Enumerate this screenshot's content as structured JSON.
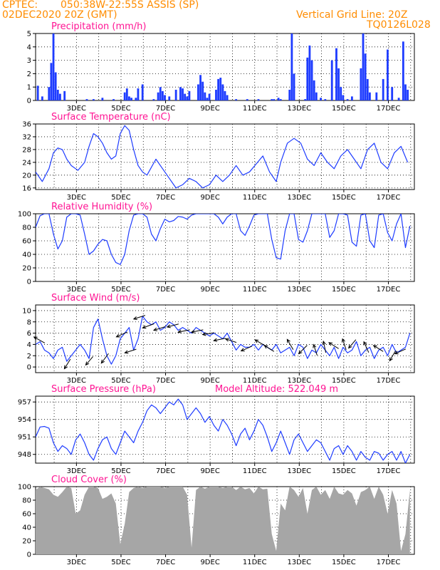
{
  "header": {
    "source": "CPTEC:",
    "location": "050:38W-22:55S   ASSIS (SP)",
    "run": "02DEC2020 20Z (GMT)",
    "grid_note": "Vertical Grid Line: 20Z",
    "model": "TQ0126L028"
  },
  "colors": {
    "header": "#ff8c00",
    "title": "#ff1493",
    "series": "#1e3cff",
    "cloud": "#a6a6a6"
  },
  "x_labels": [
    "3DEC",
    "5DEC",
    "7DEC",
    "9DEC",
    "11DEC",
    "13DEC",
    "15DEC",
    "17DEC"
  ],
  "model_altitude": "Model Altitude: 522.049 m",
  "chart_data": [
    {
      "id": "precip",
      "type": "bar",
      "title": "Precipitation (mm/h)",
      "ylim": [
        0,
        5
      ],
      "yticks": [
        0,
        1,
        2,
        3,
        4,
        5
      ],
      "x": [
        0.1,
        0.3,
        0.6,
        0.7,
        0.8,
        0.9,
        1.0,
        1.1,
        1.3,
        2.3,
        2.6,
        3.0,
        3.5,
        4.0,
        4.1,
        4.2,
        4.3,
        4.5,
        4.6,
        4.8,
        5.3,
        5.5,
        5.6,
        5.7,
        5.8,
        6.0,
        6.3,
        6.5,
        6.6,
        6.7,
        6.8,
        6.9,
        7.3,
        7.4,
        7.5,
        7.6,
        7.7,
        7.8,
        8.1,
        8.2,
        8.3,
        8.4,
        8.5,
        8.6,
        9.0,
        9.5,
        10.0,
        10.6,
        10.7,
        10.9,
        11.0,
        11.4,
        11.5,
        11.6,
        12.1,
        12.2,
        12.3,
        12.4,
        12.5,
        12.6,
        12.8,
        13.0,
        13.3,
        13.5,
        13.6,
        13.7,
        13.8,
        14.0,
        14.2,
        14.6,
        14.7,
        14.8,
        14.9,
        15.0,
        15.3,
        15.6,
        15.8,
        16.0,
        16.3,
        16.5,
        16.6,
        16.7
      ],
      "values": [
        1.1,
        0.3,
        1.0,
        2.8,
        5.0,
        2.1,
        0.8,
        0.5,
        0.7,
        0.1,
        0.1,
        0.2,
        0.1,
        0.6,
        0.9,
        0.3,
        0.2,
        0.2,
        0.9,
        1.2,
        0.1,
        0.6,
        1.0,
        0.7,
        0.4,
        0.3,
        0.8,
        1.0,
        0.9,
        0.5,
        0.3,
        0.7,
        1.2,
        1.9,
        1.4,
        0.6,
        0.2,
        0.5,
        0.8,
        1.6,
        1.7,
        1.2,
        0.7,
        0.4,
        0.1,
        0.1,
        0.1,
        0.1,
        0.1,
        0.2,
        0.1,
        0.8,
        5.0,
        2.0,
        0.1,
        3.2,
        4.1,
        3.0,
        1.5,
        0.6,
        0.2,
        0.1,
        3.0,
        3.9,
        2.4,
        1.0,
        0.4,
        0.1,
        0.3,
        2.4,
        5.0,
        3.5,
        1.6,
        0.6,
        0.6,
        1.6,
        3.8,
        1.0,
        0.2,
        4.4,
        1.2,
        0.8
      ]
    },
    {
      "id": "temp",
      "type": "line",
      "title": "Surface Temperature (nC)",
      "ylim": [
        15.5,
        36
      ],
      "yticks": [
        16,
        20,
        24,
        28,
        32,
        36
      ],
      "x": [
        0.0,
        0.3,
        0.6,
        0.8,
        1.0,
        1.2,
        1.4,
        1.6,
        1.9,
        2.2,
        2.4,
        2.6,
        2.8,
        3.0,
        3.2,
        3.4,
        3.6,
        3.8,
        4.0,
        4.2,
        4.4,
        4.6,
        4.8,
        5.0,
        5.2,
        5.4,
        5.7,
        6.0,
        6.3,
        6.6,
        6.9,
        7.2,
        7.5,
        7.8,
        8.1,
        8.4,
        8.7,
        9.0,
        9.3,
        9.6,
        9.9,
        10.2,
        10.5,
        10.8,
        11.0,
        11.3,
        11.6,
        11.9,
        12.2,
        12.5,
        12.8,
        13.1,
        13.4,
        13.7,
        14.0,
        14.3,
        14.6,
        14.9,
        15.2,
        15.5,
        15.8,
        16.1,
        16.4,
        16.7
      ],
      "values": [
        21,
        18,
        22,
        27,
        28.5,
        28,
        25,
        23,
        21.5,
        24,
        29,
        33,
        32,
        30,
        27,
        25,
        26,
        33,
        35.5,
        34,
        28,
        23,
        21,
        20,
        22.5,
        25,
        22,
        19,
        16,
        17,
        19,
        18,
        16,
        17,
        20,
        18,
        20,
        23,
        20,
        21,
        23.5,
        26,
        21,
        18,
        24,
        30,
        31.5,
        30,
        25,
        23,
        27,
        24,
        22,
        26,
        28,
        25,
        22,
        28,
        30,
        24,
        22,
        27,
        29,
        24
      ]
    },
    {
      "id": "rh",
      "type": "line",
      "title": "Relative Humidity (%)",
      "ylim": [
        0,
        100
      ],
      "yticks": [
        0,
        20,
        40,
        60,
        80,
        100
      ],
      "x": [
        0.0,
        0.2,
        0.4,
        0.6,
        0.8,
        1.0,
        1.2,
        1.4,
        1.6,
        1.8,
        2.0,
        2.2,
        2.4,
        2.6,
        2.8,
        3.0,
        3.2,
        3.4,
        3.6,
        3.8,
        4.0,
        4.2,
        4.4,
        4.6,
        4.8,
        5.0,
        5.2,
        5.4,
        5.6,
        5.8,
        6.0,
        6.2,
        6.4,
        6.6,
        6.8,
        7.0,
        7.2,
        7.4,
        7.6,
        7.8,
        8.0,
        8.2,
        8.4,
        8.6,
        8.8,
        9.0,
        9.2,
        9.4,
        9.6,
        9.8,
        10.0,
        10.2,
        10.4,
        10.6,
        10.8,
        11.0,
        11.2,
        11.4,
        11.6,
        11.8,
        12.0,
        12.2,
        12.4,
        12.6,
        12.8,
        13.0,
        13.2,
        13.4,
        13.6,
        13.8,
        14.0,
        14.2,
        14.4,
        14.6,
        14.8,
        15.0,
        15.2,
        15.4,
        15.6,
        15.8,
        16.0,
        16.2,
        16.4,
        16.6,
        16.8
      ],
      "values": [
        80,
        97,
        100,
        100,
        70,
        48,
        60,
        95,
        100,
        100,
        98,
        70,
        40,
        45,
        55,
        62,
        60,
        40,
        28,
        25,
        40,
        75,
        98,
        100,
        100,
        95,
        70,
        60,
        78,
        92,
        88,
        90,
        96,
        95,
        92,
        98,
        100,
        100,
        100,
        100,
        100,
        95,
        85,
        95,
        100,
        100,
        75,
        68,
        82,
        98,
        100,
        100,
        100,
        62,
        35,
        33,
        75,
        100,
        100,
        62,
        58,
        75,
        100,
        100,
        100,
        100,
        65,
        75,
        100,
        100,
        98,
        58,
        52,
        98,
        100,
        60,
        50,
        98,
        100,
        72,
        60,
        85,
        100,
        50,
        82
      ]
    },
    {
      "id": "wind",
      "type": "line",
      "title": "Surface Wind (m/s)",
      "ylim": [
        -1,
        11
      ],
      "yticks": [
        0,
        2,
        4,
        6,
        8,
        10
      ],
      "x": [
        0.0,
        0.2,
        0.4,
        0.6,
        0.8,
        1.0,
        1.2,
        1.4,
        1.6,
        1.8,
        2.0,
        2.2,
        2.4,
        2.6,
        2.8,
        3.0,
        3.2,
        3.4,
        3.6,
        3.8,
        4.0,
        4.2,
        4.4,
        4.6,
        4.8,
        5.0,
        5.2,
        5.4,
        5.6,
        5.8,
        6.0,
        6.2,
        6.4,
        6.6,
        6.8,
        7.0,
        7.2,
        7.4,
        7.6,
        7.8,
        8.0,
        8.2,
        8.4,
        8.6,
        8.8,
        9.0,
        9.2,
        9.4,
        9.6,
        9.8,
        10.0,
        10.2,
        10.4,
        10.6,
        10.8,
        11.0,
        11.2,
        11.4,
        11.6,
        11.8,
        12.0,
        12.2,
        12.4,
        12.6,
        12.8,
        13.0,
        13.2,
        13.4,
        13.6,
        13.8,
        14.0,
        14.2,
        14.4,
        14.6,
        14.8,
        15.0,
        15.2,
        15.4,
        15.6,
        15.8,
        16.0,
        16.2,
        16.4,
        16.6,
        16.8
      ],
      "values": [
        4,
        4.5,
        3,
        2.5,
        1.5,
        3,
        3.5,
        1,
        2,
        3,
        4,
        3,
        1.5,
        7,
        8.5,
        5,
        2,
        0.5,
        2,
        5,
        6,
        7,
        3,
        5,
        9,
        8,
        7.5,
        8,
        6.5,
        7,
        8,
        7.5,
        6.5,
        7,
        6.5,
        6,
        7,
        6.5,
        6,
        5.5,
        6,
        5.5,
        5,
        6,
        4.5,
        3,
        4,
        3.5,
        3.5,
        4,
        3,
        4,
        3.5,
        3,
        4,
        2.5,
        3,
        3.5,
        2,
        4,
        3.5,
        1.5,
        3,
        2.5,
        4,
        3,
        2,
        3.5,
        1.5,
        3.5,
        2.5,
        3,
        4.5,
        2,
        3,
        3.5,
        1.5,
        3,
        3.5,
        2,
        4,
        2.5,
        3,
        3.5,
        6
      ],
      "arrows": [
        {
          "x": 0.3,
          "dx": 0.9,
          "dy": -0.5
        },
        {
          "x": 1.5,
          "dx": 0.5,
          "dy": 0.8
        },
        {
          "x": 2.5,
          "dx": 0.6,
          "dy": 0.7
        },
        {
          "x": 3.2,
          "dx": 0.6,
          "dy": 0.8
        },
        {
          "x": 4.0,
          "dx": 0.9,
          "dy": 0.4
        },
        {
          "x": 4.4,
          "dx": 0.95,
          "dy": 0.3
        },
        {
          "x": 4.8,
          "dx": 0.95,
          "dy": 0.3
        },
        {
          "x": 5.2,
          "dx": 0.95,
          "dy": 0.35
        },
        {
          "x": 5.7,
          "dx": 0.95,
          "dy": 0.3
        },
        {
          "x": 6.3,
          "dx": 0.95,
          "dy": 0.25
        },
        {
          "x": 6.8,
          "dx": 0.97,
          "dy": 0.2
        },
        {
          "x": 7.4,
          "dx": 0.97,
          "dy": 0.2
        },
        {
          "x": 7.9,
          "dx": 0.97,
          "dy": 0.15
        },
        {
          "x": 8.4,
          "dx": 0.97,
          "dy": 0.2
        },
        {
          "x": 8.9,
          "dx": 0.9,
          "dy": -0.3
        },
        {
          "x": 9.6,
          "dx": 0.9,
          "dy": 0.4
        },
        {
          "x": 10.2,
          "dx": 0.85,
          "dy": -0.5
        },
        {
          "x": 10.6,
          "dx": 0.8,
          "dy": -0.5
        },
        {
          "x": 11.5,
          "dx": 0.5,
          "dy": -0.85
        },
        {
          "x": 12.1,
          "dx": 0.7,
          "dy": 0.7
        },
        {
          "x": 12.6,
          "dx": 0.3,
          "dy": -0.9
        },
        {
          "x": 13.0,
          "dx": 0.2,
          "dy": -0.95
        },
        {
          "x": 13.5,
          "dx": 0.8,
          "dy": -0.5
        },
        {
          "x": 13.9,
          "dx": 0.3,
          "dy": -0.9
        },
        {
          "x": 14.3,
          "dx": 0.6,
          "dy": 0.7
        },
        {
          "x": 14.9,
          "dx": 0.4,
          "dy": -0.9
        },
        {
          "x": 15.5,
          "dx": 0.8,
          "dy": -0.5
        },
        {
          "x": 16.1,
          "dx": 0.5,
          "dy": 0.85
        },
        {
          "x": 16.5,
          "dx": 0.9,
          "dy": 0.4
        }
      ]
    },
    {
      "id": "press",
      "type": "line",
      "title": "Surface Pressure (hPa)",
      "ylim": [
        946.5,
        958
      ],
      "yticks": [
        948,
        951,
        954,
        957
      ],
      "x": [
        0.0,
        0.2,
        0.4,
        0.6,
        0.8,
        1.0,
        1.2,
        1.4,
        1.6,
        1.8,
        2.0,
        2.2,
        2.4,
        2.6,
        2.8,
        3.0,
        3.2,
        3.4,
        3.6,
        3.8,
        4.0,
        4.2,
        4.4,
        4.6,
        4.8,
        5.0,
        5.2,
        5.4,
        5.6,
        5.8,
        6.0,
        6.2,
        6.4,
        6.6,
        6.8,
        7.0,
        7.2,
        7.4,
        7.6,
        7.8,
        8.0,
        8.2,
        8.4,
        8.6,
        8.8,
        9.0,
        9.2,
        9.4,
        9.6,
        9.8,
        10.0,
        10.2,
        10.4,
        10.6,
        10.8,
        11.0,
        11.2,
        11.4,
        11.6,
        11.8,
        12.0,
        12.2,
        12.4,
        12.6,
        12.8,
        13.0,
        13.2,
        13.4,
        13.6,
        13.8,
        14.0,
        14.2,
        14.4,
        14.6,
        14.8,
        15.0,
        15.2,
        15.4,
        15.6,
        15.8,
        16.0,
        16.2,
        16.4,
        16.6,
        16.8
      ],
      "values": [
        951,
        952.7,
        952.8,
        952.5,
        950,
        948.5,
        949.5,
        949,
        948,
        950.5,
        951.5,
        950,
        948,
        947,
        949,
        950.5,
        951,
        949,
        948,
        950,
        952,
        951,
        950,
        952,
        953.5,
        955.5,
        956.5,
        956,
        955,
        956,
        957,
        956.5,
        957.5,
        956.5,
        954,
        955,
        956,
        955,
        953.5,
        954.5,
        953,
        952,
        954,
        953,
        951.5,
        949.5,
        951.5,
        952.5,
        950.5,
        952,
        954,
        953,
        951,
        948.5,
        950,
        952,
        950,
        948,
        950.5,
        951.5,
        950,
        948.5,
        949.5,
        950.5,
        950,
        948.5,
        947,
        949,
        949.5,
        948,
        949.5,
        948.5,
        947,
        948.5,
        947.5,
        947,
        948.5,
        948.2,
        947,
        948,
        948.5,
        947,
        948.5,
        946.5,
        948
      ]
    },
    {
      "id": "cloud",
      "type": "area",
      "title": "Cloud Cover (%)",
      "ylim": [
        0,
        100
      ],
      "yticks": [
        0,
        20,
        40,
        60,
        80,
        100
      ],
      "x": [
        0.0,
        0.2,
        0.4,
        0.6,
        0.8,
        1.0,
        1.2,
        1.4,
        1.6,
        1.8,
        2.0,
        2.2,
        2.4,
        2.6,
        2.8,
        3.0,
        3.2,
        3.4,
        3.6,
        3.8,
        4.0,
        4.2,
        4.4,
        4.6,
        4.8,
        5.0,
        5.2,
        5.4,
        5.6,
        5.8,
        6.0,
        6.2,
        6.4,
        6.6,
        6.8,
        7.0,
        7.2,
        7.4,
        7.6,
        7.8,
        8.0,
        8.2,
        8.4,
        8.6,
        8.8,
        9.0,
        9.2,
        9.4,
        9.6,
        9.8,
        10.0,
        10.2,
        10.4,
        10.6,
        10.8,
        11.0,
        11.2,
        11.4,
        11.6,
        11.8,
        12.0,
        12.2,
        12.4,
        12.6,
        12.8,
        13.0,
        13.2,
        13.4,
        13.6,
        13.8,
        14.0,
        14.2,
        14.4,
        14.6,
        14.8,
        15.0,
        15.2,
        15.4,
        15.6,
        15.8,
        16.0,
        16.2,
        16.4,
        16.6,
        16.8
      ],
      "values": [
        95,
        100,
        98,
        96,
        88,
        85,
        92,
        100,
        98,
        60,
        65,
        88,
        100,
        100,
        98,
        82,
        85,
        90,
        75,
        15,
        45,
        92,
        98,
        100,
        98,
        100,
        100,
        100,
        100,
        98,
        100,
        100,
        100,
        100,
        88,
        10,
        95,
        100,
        97,
        100,
        100,
        100,
        98,
        100,
        100,
        95,
        100,
        96,
        98,
        90,
        100,
        96,
        97,
        30,
        5,
        75,
        65,
        100,
        95,
        85,
        98,
        60,
        95,
        100,
        88,
        95,
        82,
        100,
        90,
        88,
        95,
        90,
        72,
        92,
        95,
        100,
        82,
        100,
        88,
        60,
        95,
        75,
        5,
        30,
        95
      ]
    }
  ]
}
